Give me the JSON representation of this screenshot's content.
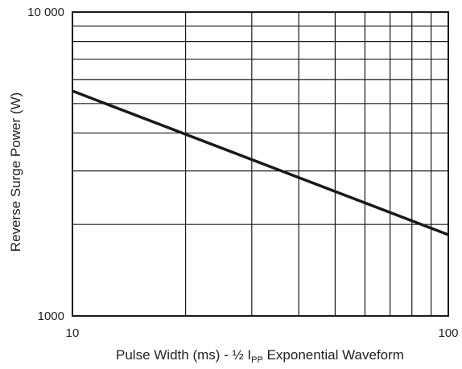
{
  "chart_data": {
    "type": "line",
    "x_scale": "log",
    "y_scale": "log",
    "xlim": [
      10,
      100
    ],
    "ylim": [
      1000,
      10000
    ],
    "x_tick_labels": [
      {
        "value": 10,
        "text": "10"
      },
      {
        "value": 100,
        "text": "100"
      }
    ],
    "y_tick_labels": [
      {
        "value": 1000,
        "text": "1000"
      },
      {
        "value": 10000,
        "text": "10 000"
      }
    ],
    "x_gridlines": [
      20,
      30,
      40,
      50,
      60,
      70,
      80,
      90
    ],
    "y_gridlines": [
      2000,
      3000,
      4000,
      5000,
      6000,
      7000,
      8000,
      9000
    ],
    "grid": true,
    "xlabel": {
      "prefix": "Pulse Width (ms) - ½ I",
      "subscript": "PP",
      "suffix": " Exponential Waveform"
    },
    "ylabel": "Reverse Surge Power (W)",
    "series": [
      {
        "x": [
          10,
          100
        ],
        "y": [
          5500,
          1850
        ],
        "color": "#1a1a1a"
      }
    ]
  }
}
